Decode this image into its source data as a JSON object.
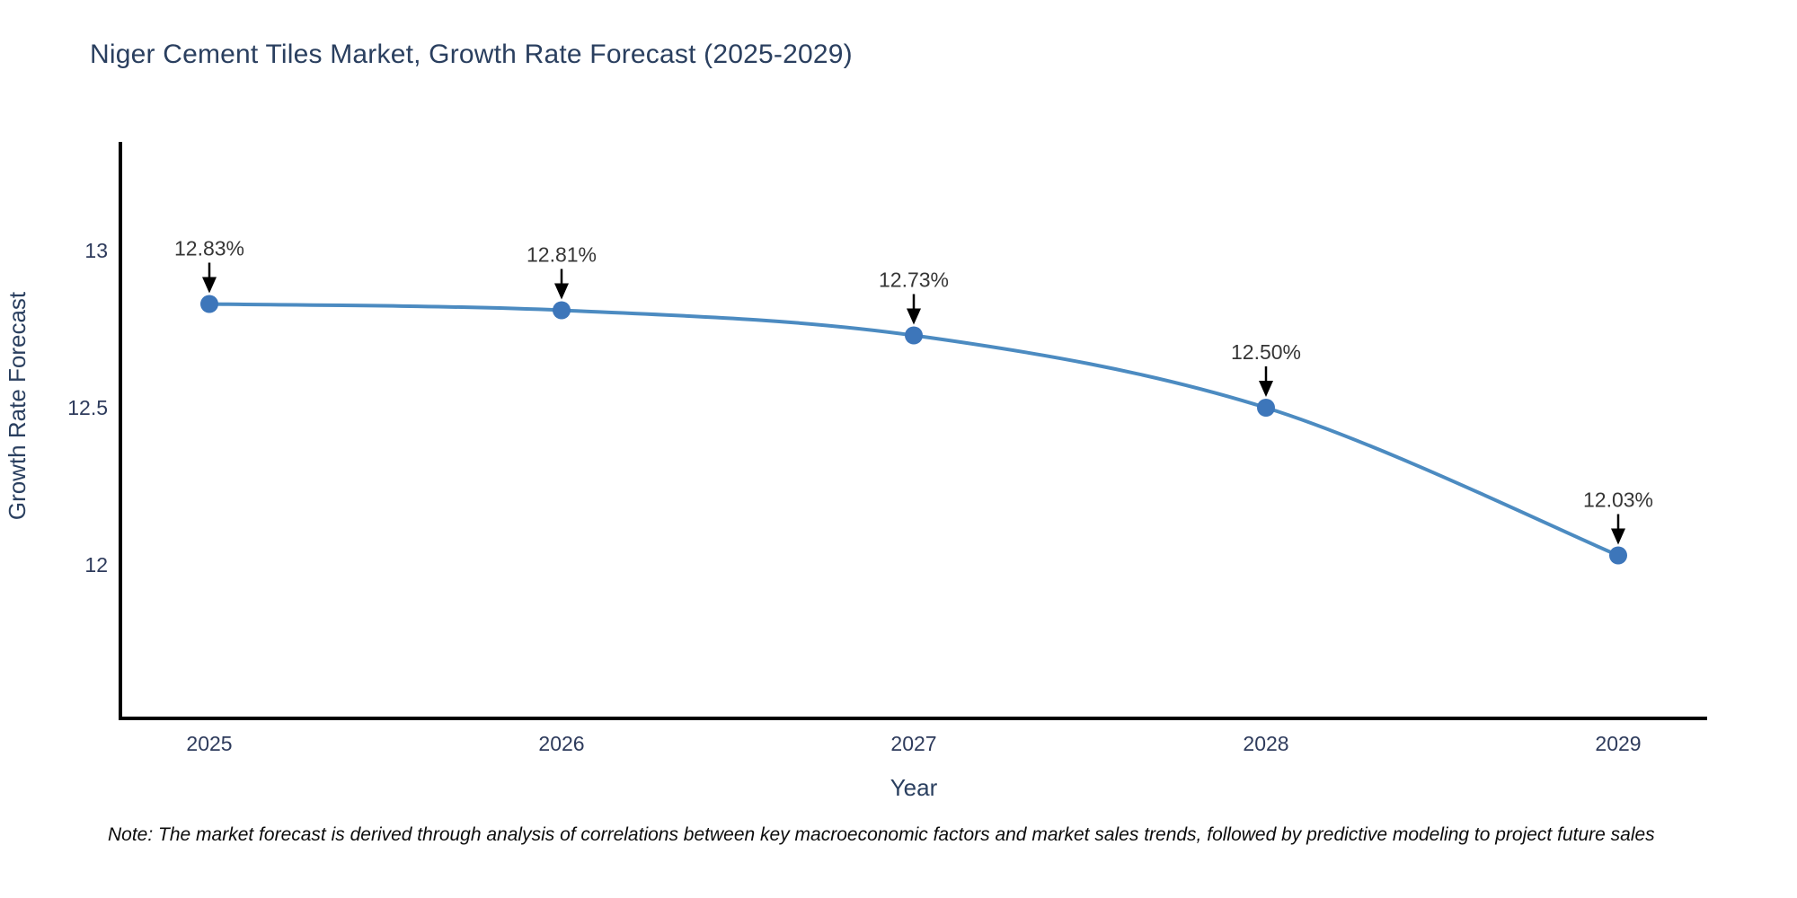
{
  "note": "Note: The market forecast is derived through analysis of correlations between key macroeconomic factors and market sales trends, followed by predictive modeling to project future sales",
  "chart_data": {
    "type": "line",
    "title": "Niger Cement Tiles Market, Growth Rate Forecast (2025-2029)",
    "xlabel": "Year",
    "ylabel": "Growth Rate Forecast",
    "x": [
      2025,
      2026,
      2027,
      2028,
      2029
    ],
    "values": [
      12.83,
      12.81,
      12.73,
      12.5,
      12.03
    ],
    "point_labels": [
      "12.83%",
      "12.81%",
      "12.73%",
      "12.50%",
      "12.03%"
    ],
    "xtick_labels": [
      "2025",
      "2026",
      "2027",
      "2028",
      "2029"
    ],
    "yticks": [
      12,
      12.5,
      13
    ],
    "ytick_labels": [
      "12",
      "12.5",
      "13"
    ],
    "ylim": [
      11.5,
      13.35
    ],
    "grid": false,
    "legend": false,
    "line_color": "#4c8bc1",
    "marker_color": "#3d76ba",
    "axis_color": "#000000",
    "text_color": "#2a3f5f",
    "annotation_color": "#363636",
    "annotation_arrow_color": "#000000",
    "background_color": "#ffffff"
  }
}
